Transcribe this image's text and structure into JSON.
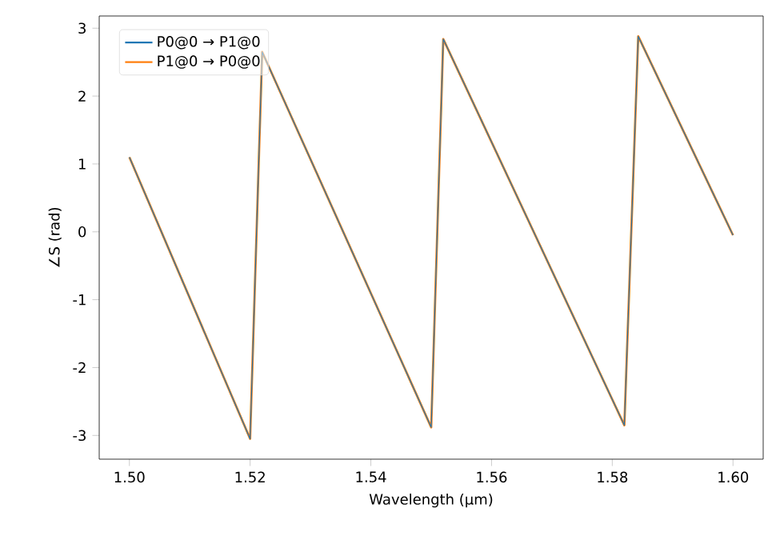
{
  "chart_data": {
    "type": "line",
    "xlabel": "Wavelength (μm)",
    "ylabel": "∠S (rad)",
    "xlim": [
      1.495,
      1.605
    ],
    "ylim": [
      -3.35,
      3.18
    ],
    "xticks": [
      {
        "value": 1.5,
        "label": "1.50"
      },
      {
        "value": 1.52,
        "label": "1.52"
      },
      {
        "value": 1.54,
        "label": "1.54"
      },
      {
        "value": 1.56,
        "label": "1.56"
      },
      {
        "value": 1.58,
        "label": "1.58"
      },
      {
        "value": 1.6,
        "label": "1.60"
      }
    ],
    "yticks": [
      -3,
      -2,
      -1,
      0,
      1,
      2,
      3
    ],
    "legend": "top left",
    "grid": false,
    "series": [
      {
        "name": "P0@0 → P1@0",
        "color": "#1f77b4",
        "x": [
          1.5,
          1.52,
          1.522,
          1.55,
          1.552,
          1.582,
          1.5843,
          1.6
        ],
        "values": [
          1.1,
          -3.05,
          2.65,
          -2.88,
          2.84,
          -2.85,
          2.88,
          -0.05
        ]
      },
      {
        "name": "P1@0 → P0@0",
        "color": "#ff7f0e",
        "x": [
          1.5,
          1.52,
          1.522,
          1.55,
          1.552,
          1.582,
          1.5843,
          1.6
        ],
        "values": [
          1.1,
          -3.05,
          2.65,
          -2.88,
          2.84,
          -2.85,
          2.88,
          -0.05
        ]
      }
    ]
  }
}
